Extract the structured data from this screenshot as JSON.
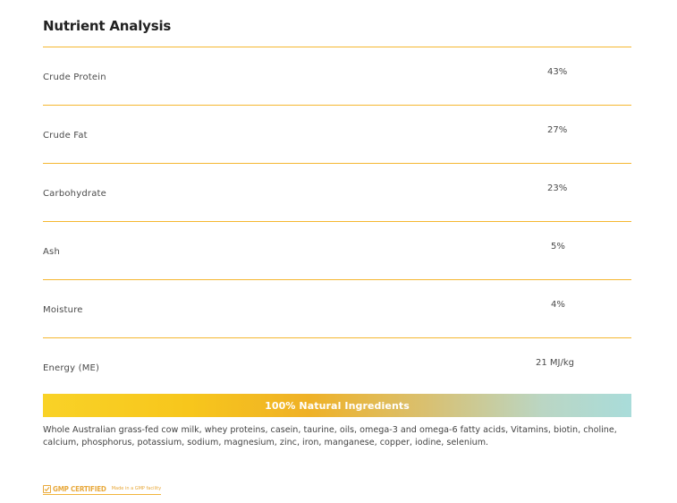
{
  "title": "Nutrient Analysis",
  "rows": [
    {
      "label": "Crude Protein",
      "value": "43%"
    },
    {
      "label": "Crude Fat",
      "value": "27%"
    },
    {
      "label": "Carbohydrate",
      "value": "23%"
    },
    {
      "label": "Ash",
      "value": "5%"
    },
    {
      "label": "Moisture",
      "value": "4%"
    },
    {
      "label": "Energy (ME)",
      "value": "21 MJ/kg"
    }
  ],
  "banner": {
    "text": "100% Natural Ingredients"
  },
  "ingredients": "Whole Australian grass-fed cow milk, whey proteins, casein, taurine, oils, omega-3 and omega-6 fatty acids, Vitamins, biotin, choline, calcium, phosphorus, potassium, sodium, magnesium, zinc, iron, manganese, copper, iodine, selenium.",
  "gmp": {
    "label": "GMP CERTIFIED",
    "sub": "Made in a GMP facility",
    "icon": "check-box-icon"
  },
  "colors": {
    "rule": "#f5b730",
    "banner_start": "#f9d227",
    "banner_end": "#a9dcda",
    "gmp_accent": "#e8a83a"
  }
}
